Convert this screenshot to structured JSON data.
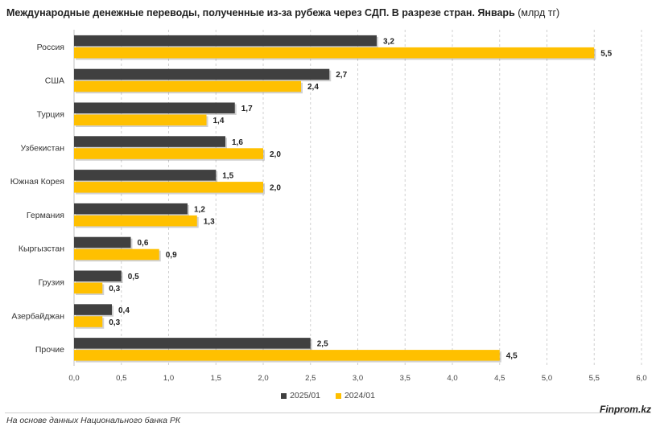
{
  "title": {
    "main": "Международные денежные переводы, полученные из-за рубежа через СДП. В разрезе стран. Январь",
    "unit": "(млрд тг)"
  },
  "chart_data": {
    "type": "bar",
    "orientation": "horizontal",
    "categories": [
      "Россия",
      "США",
      "Турция",
      "Узбекистан",
      "Южная Корея",
      "Германия",
      "Кыргызстан",
      "Грузия",
      "Азербайджан",
      "Прочие"
    ],
    "series": [
      {
        "name": "2025/01",
        "color": "#404040",
        "values": [
          3.2,
          2.7,
          1.7,
          1.6,
          1.5,
          1.2,
          0.6,
          0.5,
          0.4,
          2.5
        ],
        "labels": [
          "3,2",
          "2,7",
          "1,7",
          "1,6",
          "1,5",
          "1,2",
          "0,6",
          "0,5",
          "0,4",
          "2,5"
        ]
      },
      {
        "name": "2024/01",
        "color": "#FFC000",
        "values": [
          5.5,
          2.4,
          1.4,
          2.0,
          2.0,
          1.3,
          0.9,
          0.3,
          0.3,
          4.5
        ],
        "labels": [
          "5,5",
          "2,4",
          "1,4",
          "2,0",
          "2,0",
          "1,3",
          "0,9",
          "0,3",
          "0,3",
          "4,5"
        ]
      }
    ],
    "xlim": [
      0,
      6.0
    ],
    "ticks": [
      0,
      0.5,
      1.0,
      1.5,
      2.0,
      2.5,
      3.0,
      3.5,
      4.0,
      4.5,
      5.0,
      5.5,
      6.0
    ],
    "tick_labels": [
      "0,0",
      "0,5",
      "1,0",
      "1,5",
      "2,0",
      "2,5",
      "3,0",
      "3,5",
      "4,0",
      "4,5",
      "5,0",
      "5,5",
      "6,0"
    ],
    "grid": "vertical dashed",
    "legend_position": "bottom"
  },
  "legend": {
    "items": [
      {
        "label": "2025/01",
        "color": "#404040"
      },
      {
        "label": "2024/01",
        "color": "#FFC000"
      }
    ]
  },
  "footer": {
    "source": "На основе данных Национального банка РК",
    "brand": "Finprom.kz"
  }
}
